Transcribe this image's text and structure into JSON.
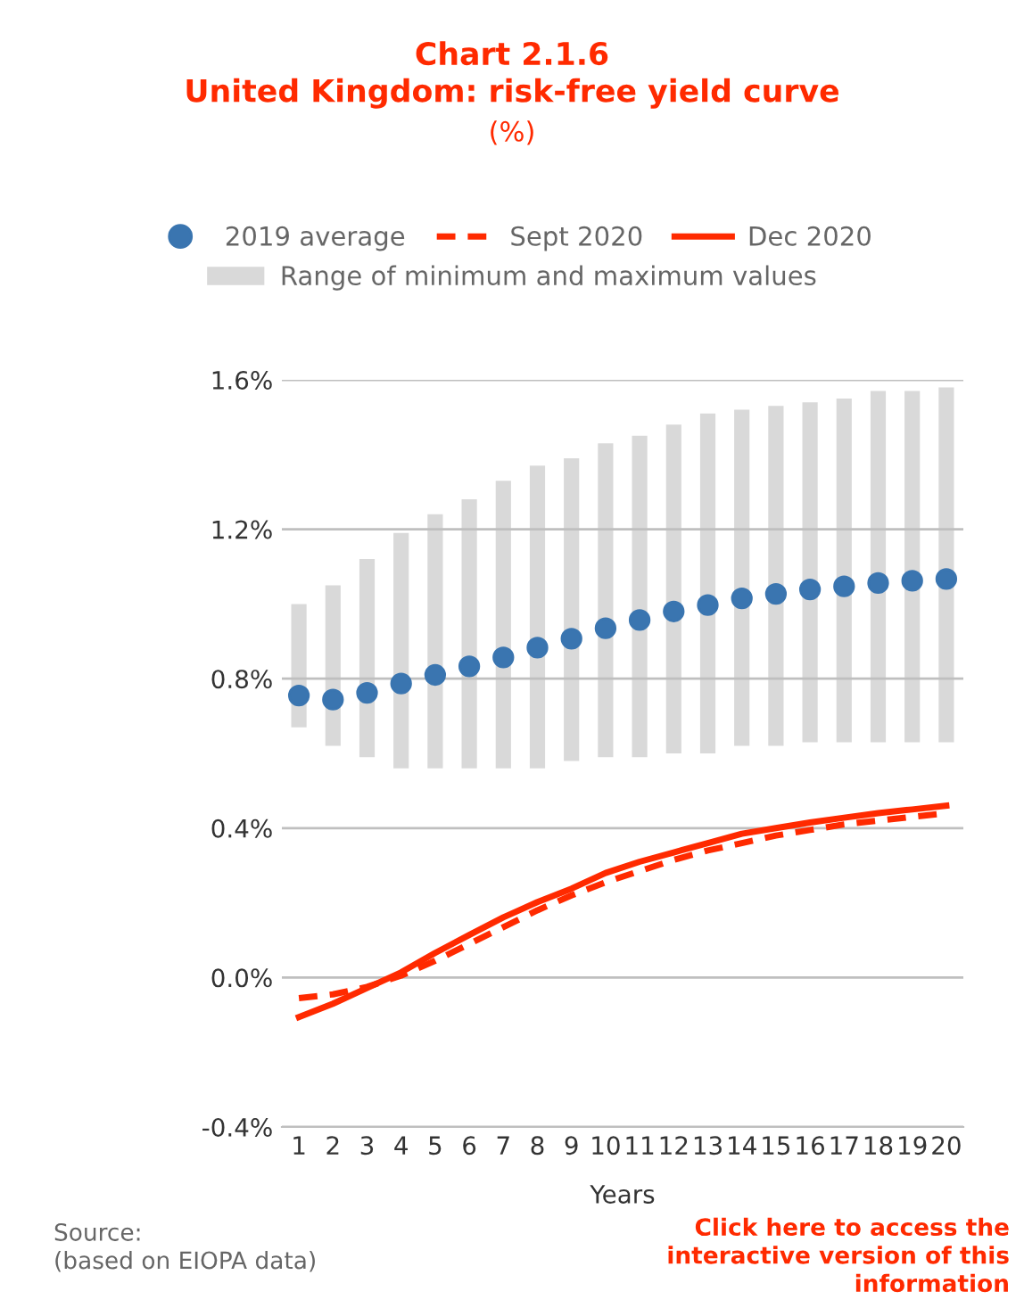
{
  "chart_data": {
    "type": "line",
    "title": "Chart 2.1.6\nUnited Kingdom: risk-free yield curve",
    "subtitle": "(%)",
    "xlabel": "Years",
    "categories": [
      "1",
      "2",
      "3",
      "4",
      "5",
      "6",
      "7",
      "8",
      "9",
      "10",
      "11",
      "12",
      "13",
      "14",
      "15",
      "16",
      "17",
      "18",
      "19",
      "20"
    ],
    "series": [
      {
        "name": "2019 average",
        "type": "scatter",
        "color": "#3a75b0",
        "marker": "circle",
        "values": [
          0.755,
          0.744,
          0.762,
          0.787,
          0.81,
          0.833,
          0.857,
          0.883,
          0.907,
          0.935,
          0.957,
          0.98,
          0.997,
          1.015,
          1.027,
          1.039,
          1.047,
          1.056,
          1.062,
          1.067
        ]
      },
      {
        "name": "Sept 2020",
        "color": "#ff2a00",
        "line_style": "dashed",
        "values": [
          -0.055,
          -0.045,
          -0.025,
          0.005,
          0.045,
          0.09,
          0.135,
          0.18,
          0.22,
          0.255,
          0.285,
          0.315,
          0.34,
          0.36,
          0.38,
          0.395,
          0.41,
          0.42,
          0.43,
          0.44
        ]
      },
      {
        "name": "Dec 2020",
        "color": "#ff2a00",
        "line_style": "solid",
        "values": [
          -0.106,
          -0.07,
          -0.028,
          0.014,
          0.066,
          0.114,
          0.161,
          0.202,
          0.238,
          0.28,
          0.31,
          0.335,
          0.36,
          0.385,
          0.4,
          0.415,
          0.428,
          0.44,
          0.45,
          0.46
        ]
      },
      {
        "name": "Range of minimum and maximum values",
        "type": "bar",
        "color": "#d9d9d9",
        "base": [
          0.67,
          0.62,
          0.59,
          0.56,
          0.56,
          0.56,
          0.56,
          0.56,
          0.58,
          0.59,
          0.59,
          0.6,
          0.6,
          0.62,
          0.62,
          0.63,
          0.63,
          0.63,
          0.63,
          0.63
        ],
        "values": [
          0.33,
          0.43,
          0.53,
          0.63,
          0.68,
          0.72,
          0.77,
          0.81,
          0.81,
          0.84,
          0.86,
          0.88,
          0.91,
          0.9,
          0.91,
          0.91,
          0.92,
          0.94,
          0.94,
          0.95
        ]
      }
    ],
    "ylim": [
      -0.4,
      1.6
    ],
    "yticks": [
      {
        "value": -0.4,
        "label": "-0.4%"
      },
      {
        "value": 0.0,
        "label": "0.0%"
      },
      {
        "value": 0.4,
        "label": "0.4%"
      },
      {
        "value": 0.8,
        "label": "0.8%"
      },
      {
        "value": 1.2,
        "label": "1.2%"
      },
      {
        "value": 1.6,
        "label": "1.6%"
      }
    ],
    "grid": "y",
    "legend": "top",
    "annotations": [
      "Source:\n(based on EIOPA data)",
      "Click here to access the\ninteractive version of this\ninformation"
    ]
  }
}
